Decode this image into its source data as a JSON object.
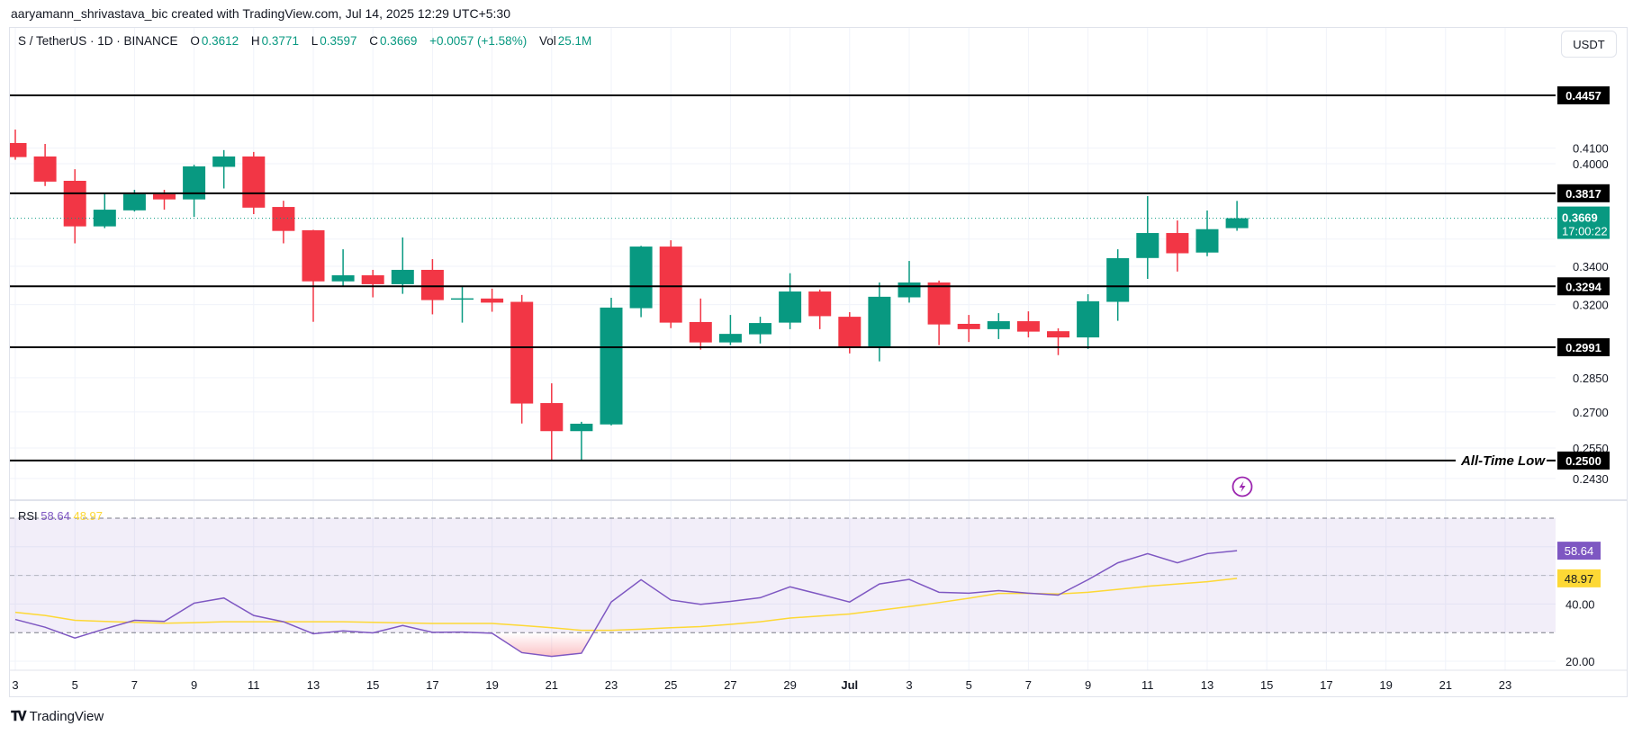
{
  "header": {
    "credit": "aaryamann_shrivastava_bic created with TradingView.com, Jul 14, 2025 12:29 UTC+5:30"
  },
  "legend": {
    "symbol": "S / TetherUS · 1D · BINANCE",
    "o_label": "O",
    "o": "0.3612",
    "h_label": "H",
    "h": "0.3771",
    "l_label": "L",
    "l": "0.3597",
    "c_label": "C",
    "c": "0.3669",
    "change": "+0.0057 (+1.58%)",
    "vol_label": "Vol",
    "vol": "25.1M"
  },
  "currency_button": "USDT",
  "footer": {
    "logo": "TV",
    "brand": "TradingView"
  },
  "colors": {
    "up": "#089981",
    "down": "#f23645",
    "rsi": "#7e57c2",
    "rsi_ma": "#fdd835",
    "level": "#000000",
    "alert_icon": "#9c27b0"
  },
  "icons": {
    "alert": "lightning-circle-icon",
    "logo": "tradingview-logo-icon"
  },
  "chart_data": [
    {
      "type": "candlestick",
      "title": "S / TetherUS · 1D · BINANCE",
      "y_scale": "log",
      "grid": true,
      "dates": [
        "Jun 3",
        "Jun 4",
        "Jun 5",
        "Jun 6",
        "Jun 7",
        "Jun 8",
        "Jun 9",
        "Jun 10",
        "Jun 11",
        "Jun 12",
        "Jun 13",
        "Jun 14",
        "Jun 15",
        "Jun 16",
        "Jun 17",
        "Jun 18",
        "Jun 19",
        "Jun 20",
        "Jun 21",
        "Jun 22",
        "Jun 23",
        "Jun 24",
        "Jun 25",
        "Jun 26",
        "Jun 27",
        "Jun 28",
        "Jun 29",
        "Jun 30",
        "Jul 1",
        "Jul 2",
        "Jul 3",
        "Jul 4",
        "Jul 5",
        "Jul 6",
        "Jul 7",
        "Jul 8",
        "Jul 9",
        "Jul 10",
        "Jul 11",
        "Jul 12",
        "Jul 13",
        "Jul 14"
      ],
      "ohlc": [
        [
          0.4133,
          0.4222,
          0.4025,
          0.4042
        ],
        [
          0.4046,
          0.4127,
          0.3861,
          0.3888
        ],
        [
          0.3893,
          0.3965,
          0.3526,
          0.3622
        ],
        [
          0.3622,
          0.3821,
          0.3612,
          0.3719
        ],
        [
          0.3715,
          0.3838,
          0.3708,
          0.3811
        ],
        [
          0.3811,
          0.3838,
          0.3719,
          0.378
        ],
        [
          0.378,
          0.3993,
          0.3677,
          0.3983
        ],
        [
          0.398,
          0.4087,
          0.3846,
          0.4046
        ],
        [
          0.4046,
          0.4075,
          0.3693,
          0.3731
        ],
        [
          0.3735,
          0.3772,
          0.3526,
          0.3596
        ],
        [
          0.36,
          0.3602,
          0.3114,
          0.332
        ],
        [
          0.332,
          0.3493,
          0.3291,
          0.3352
        ],
        [
          0.3352,
          0.3381,
          0.3237,
          0.3305
        ],
        [
          0.3305,
          0.3559,
          0.3255,
          0.3381
        ],
        [
          0.3381,
          0.3439,
          0.3151,
          0.3223
        ],
        [
          0.3228,
          0.329,
          0.311,
          0.3232
        ],
        [
          0.3231,
          0.3282,
          0.3164,
          0.321
        ],
        [
          0.3214,
          0.3249,
          0.2651,
          0.2736
        ],
        [
          0.2738,
          0.2825,
          0.25,
          0.2619
        ],
        [
          0.2619,
          0.2658,
          0.25,
          0.265
        ],
        [
          0.2647,
          0.3235,
          0.2643,
          0.3185
        ],
        [
          0.3182,
          0.3512,
          0.3137,
          0.3508
        ],
        [
          0.3508,
          0.3543,
          0.3083,
          0.311
        ],
        [
          0.3113,
          0.3231,
          0.298,
          0.3014
        ],
        [
          0.3014,
          0.3148,
          0.3001,
          0.3055
        ],
        [
          0.3053,
          0.3139,
          0.3009,
          0.3108
        ],
        [
          0.311,
          0.3363,
          0.3078,
          0.3267
        ],
        [
          0.3267,
          0.3277,
          0.3078,
          0.3142
        ],
        [
          0.3139,
          0.3162,
          0.2962,
          0.2988
        ],
        [
          0.2988,
          0.3314,
          0.2925,
          0.324
        ],
        [
          0.3237,
          0.3429,
          0.321,
          0.3314
        ],
        [
          0.3314,
          0.3324,
          0.3001,
          0.3101
        ],
        [
          0.3104,
          0.3148,
          0.3016,
          0.3078
        ],
        [
          0.3078,
          0.3157,
          0.303,
          0.3117
        ],
        [
          0.3117,
          0.3166,
          0.3038,
          0.3066
        ],
        [
          0.3068,
          0.3082,
          0.2954,
          0.3038
        ],
        [
          0.3038,
          0.3253,
          0.2983,
          0.3217
        ],
        [
          0.3214,
          0.3493,
          0.3119,
          0.3444
        ],
        [
          0.3445,
          0.38,
          0.3333,
          0.3584
        ],
        [
          0.3584,
          0.3656,
          0.3372,
          0.3471
        ],
        [
          0.3475,
          0.3714,
          0.3455,
          0.3606
        ],
        [
          0.3612,
          0.3771,
          0.3597,
          0.3669
        ]
      ],
      "y_ticks": [
        "0.4100",
        "0.4000",
        "0.3400",
        "0.3200",
        "0.2850",
        "0.2700",
        "0.2550",
        "0.2430"
      ],
      "x_ticks": [
        "3",
        "5",
        "7",
        "9",
        "11",
        "13",
        "15",
        "17",
        "19",
        "21",
        "23",
        "25",
        "27",
        "29",
        "Jul",
        "3",
        "5",
        "7",
        "9",
        "11",
        "13",
        "15",
        "17",
        "19",
        "21",
        "23"
      ],
      "levels": [
        {
          "price": 0.4457,
          "label": "0.4457",
          "text": ""
        },
        {
          "price": 0.3817,
          "label": "0.3817",
          "text": ""
        },
        {
          "price": 0.3294,
          "label": "0.3294",
          "text": ""
        },
        {
          "price": 0.2991,
          "label": "0.2991",
          "text": ""
        },
        {
          "price": 0.25,
          "label": "0.2500",
          "text": "All-Time Low"
        }
      ],
      "last_price": {
        "price": 0.3669,
        "label": "0.3669",
        "countdown": "17:00:22"
      }
    },
    {
      "type": "line",
      "title": "RSI",
      "ylim": [
        20,
        70
      ],
      "band": [
        30,
        70
      ],
      "mid_line": 50,
      "y_ticks": [
        "40.00",
        "20.00"
      ],
      "series": [
        {
          "name": "RSI",
          "value_label": "58.64",
          "values": [
            34.6,
            31.9,
            28.1,
            31.3,
            34.3,
            33.9,
            40.3,
            42.1,
            36.0,
            33.8,
            29.6,
            30.6,
            29.9,
            32.5,
            30.1,
            30.2,
            29.8,
            23.0,
            21.7,
            22.8,
            40.7,
            48.5,
            41.4,
            39.9,
            40.9,
            42.2,
            46.0,
            43.4,
            40.7,
            47.0,
            48.6,
            44.1,
            43.8,
            44.7,
            43.8,
            43.1,
            48.5,
            54.4,
            57.6,
            54.4,
            57.6,
            58.64
          ]
        },
        {
          "name": "RSI-based MA",
          "value_label": "48.97",
          "values": [
            37.1,
            36.0,
            34.3,
            33.9,
            33.6,
            33.3,
            33.5,
            33.8,
            33.8,
            33.8,
            33.8,
            33.8,
            33.6,
            33.4,
            33.2,
            33.2,
            33.2,
            32.5,
            31.7,
            30.8,
            30.8,
            31.2,
            31.7,
            32.1,
            32.9,
            33.8,
            35.1,
            35.8,
            36.5,
            37.8,
            39.1,
            40.5,
            42.0,
            43.7,
            43.7,
            43.5,
            44.1,
            45.1,
            46.2,
            47.0,
            47.8,
            48.97
          ]
        }
      ]
    }
  ]
}
